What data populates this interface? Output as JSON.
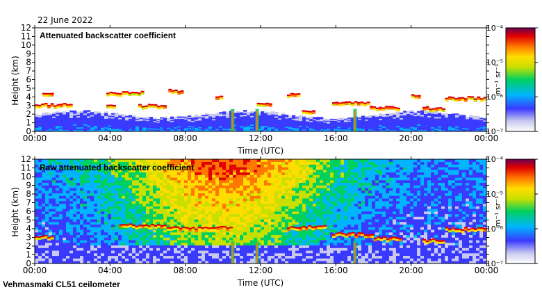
{
  "date_label": "22 June 2022",
  "instrument_label": "Vehmasmaki CL51 ceilometer",
  "chart_data": [
    {
      "type": "heatmap",
      "title": "Attenuated backscatter coefficient",
      "xlabel": "Time (UTC)",
      "ylabel": "Height (km)",
      "x_ticks": [
        "00:00",
        "04:00",
        "08:00",
        "12:00",
        "16:00",
        "20:00",
        "00:00"
      ],
      "y_ticks": [
        "0",
        "1",
        "2",
        "3",
        "4",
        "5",
        "6",
        "7",
        "8",
        "9",
        "10",
        "11",
        "12"
      ],
      "xlim_hours": [
        0,
        24
      ],
      "ylim_km": [
        0,
        12
      ],
      "colorbar": {
        "label": "m⁻¹ sr⁻¹",
        "scale": "log",
        "range": [
          1e-07,
          0.0001
        ],
        "tick_labels": [
          "10⁻⁴",
          "10⁻⁵",
          "10⁻⁶",
          "10⁻⁷"
        ]
      },
      "features": {
        "boundary_layer_top_km": 1.8,
        "cloud_layers": [
          {
            "start_h": 0.0,
            "end_h": 2.0,
            "height_km": 3.0
          },
          {
            "start_h": 0.4,
            "end_h": 1.0,
            "height_km": 4.2
          },
          {
            "start_h": 3.8,
            "end_h": 5.8,
            "height_km": 4.4
          },
          {
            "start_h": 3.8,
            "end_h": 4.3,
            "height_km": 3.0
          },
          {
            "start_h": 5.5,
            "end_h": 7.0,
            "height_km": 2.9
          },
          {
            "start_h": 7.1,
            "end_h": 7.9,
            "height_km": 4.6
          },
          {
            "start_h": 9.6,
            "end_h": 10.0,
            "height_km": 4.0
          },
          {
            "start_h": 11.8,
            "end_h": 12.6,
            "height_km": 3.0
          },
          {
            "start_h": 13.4,
            "end_h": 14.1,
            "height_km": 4.2
          },
          {
            "start_h": 14.2,
            "end_h": 14.9,
            "height_km": 2.3
          },
          {
            "start_h": 15.8,
            "end_h": 17.8,
            "height_km": 3.3
          },
          {
            "start_h": 17.8,
            "end_h": 19.4,
            "height_km": 2.7
          },
          {
            "start_h": 20.0,
            "end_h": 20.5,
            "height_km": 4.0
          },
          {
            "start_h": 20.6,
            "end_h": 21.8,
            "height_km": 2.6
          },
          {
            "start_h": 21.8,
            "end_h": 24.0,
            "height_km": 3.8
          }
        ],
        "precipitation_shafts_h": [
          10.5,
          11.8,
          17.0
        ]
      }
    },
    {
      "type": "heatmap",
      "title": "Raw attenuated backscatter coefficient",
      "xlabel": "Time (UTC)",
      "ylabel": "Height (km)",
      "x_ticks": [
        "00:00",
        "04:00",
        "08:00",
        "12:00",
        "16:00",
        "20:00",
        "00:00"
      ],
      "y_ticks": [
        "0",
        "1",
        "2",
        "3",
        "4",
        "5",
        "6",
        "7",
        "8",
        "9",
        "10",
        "11",
        "12"
      ],
      "xlim_hours": [
        0,
        24
      ],
      "ylim_km": [
        0,
        12
      ],
      "colorbar": {
        "label": "m⁻¹ sr⁻¹",
        "scale": "log",
        "range": [
          1e-07,
          0.0001
        ],
        "tick_labels": [
          "10⁻⁴",
          "10⁻⁵",
          "10⁻⁶",
          "10⁻⁷"
        ]
      },
      "features": {
        "noise_dominated_above_km": 4,
        "daytime_noise_peak_h": [
          6,
          14
        ],
        "cloud_layers": [
          {
            "start_h": 0.0,
            "end_h": 1.0,
            "height_km": 3.0
          },
          {
            "start_h": 4.5,
            "end_h": 7.0,
            "height_km": 4.3
          },
          {
            "start_h": 7.0,
            "end_h": 10.5,
            "height_km": 4.0
          },
          {
            "start_h": 13.4,
            "end_h": 15.5,
            "height_km": 4.1
          },
          {
            "start_h": 15.8,
            "end_h": 18.0,
            "height_km": 3.3
          },
          {
            "start_h": 18.0,
            "end_h": 19.5,
            "height_km": 2.8
          },
          {
            "start_h": 20.6,
            "end_h": 21.8,
            "height_km": 2.6
          },
          {
            "start_h": 21.8,
            "end_h": 24.0,
            "height_km": 3.9
          }
        ],
        "precipitation_shafts_h": [
          10.5,
          11.8,
          17.0
        ]
      }
    }
  ]
}
